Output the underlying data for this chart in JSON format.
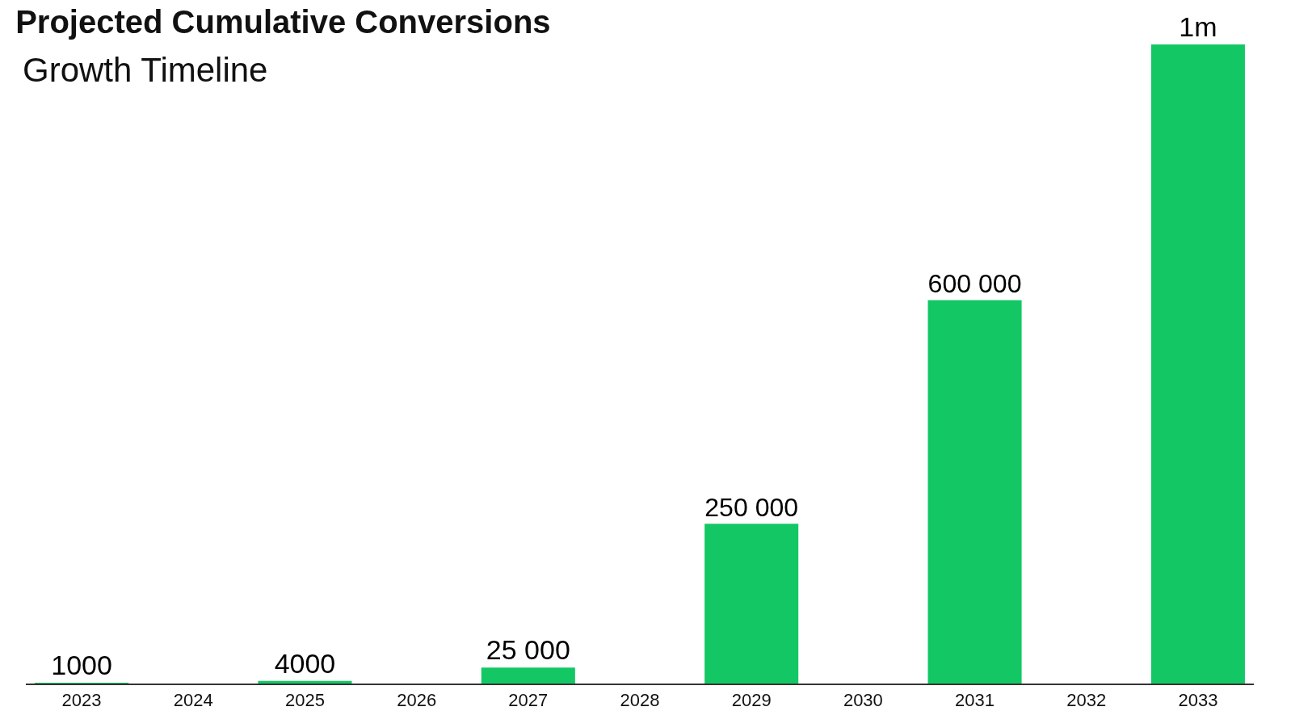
{
  "chart_data": {
    "type": "bar",
    "title": "Projected Cumulative Conversions",
    "subtitle": "Growth Timeline",
    "categories": [
      "2023",
      "2024",
      "2025",
      "2026",
      "2027",
      "2028",
      "2029",
      "2030",
      "2031",
      "2032",
      "2033"
    ],
    "values": [
      1000,
      null,
      4000,
      null,
      25000,
      null,
      250000,
      null,
      600000,
      null,
      1000000
    ],
    "value_labels": [
      "1000",
      null,
      "4000",
      null,
      "25 000",
      null,
      "250 000",
      null,
      "600 000",
      null,
      "1m"
    ],
    "color": "#13c864",
    "ylim": [
      0,
      1000000
    ],
    "tick_labels": "x",
    "grid": false,
    "legend": false
  }
}
